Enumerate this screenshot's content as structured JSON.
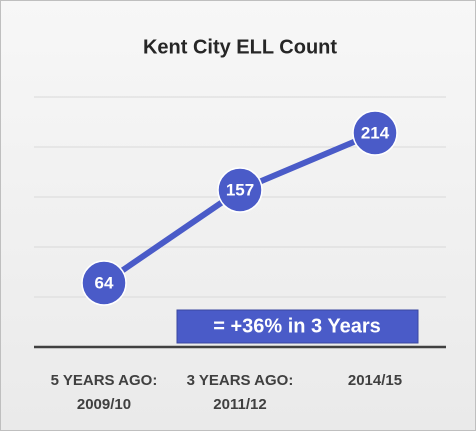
{
  "chart_data": {
    "type": "line",
    "title": "Kent City ELL Count",
    "categories": [
      [
        "5 YEARS AGO:",
        "2009/10"
      ],
      [
        "3 YEARS AGO:",
        "2011/12"
      ],
      [
        "2014/15"
      ]
    ],
    "series": [
      {
        "name": "ELL Count",
        "color": "#4a5bc8",
        "values": [
          64,
          157,
          214
        ]
      }
    ],
    "ylim": [
      0,
      250
    ],
    "yticks": [
      0,
      50,
      100,
      150,
      200,
      250
    ],
    "grid": true,
    "annotation": "= +36% in 3 Years"
  }
}
